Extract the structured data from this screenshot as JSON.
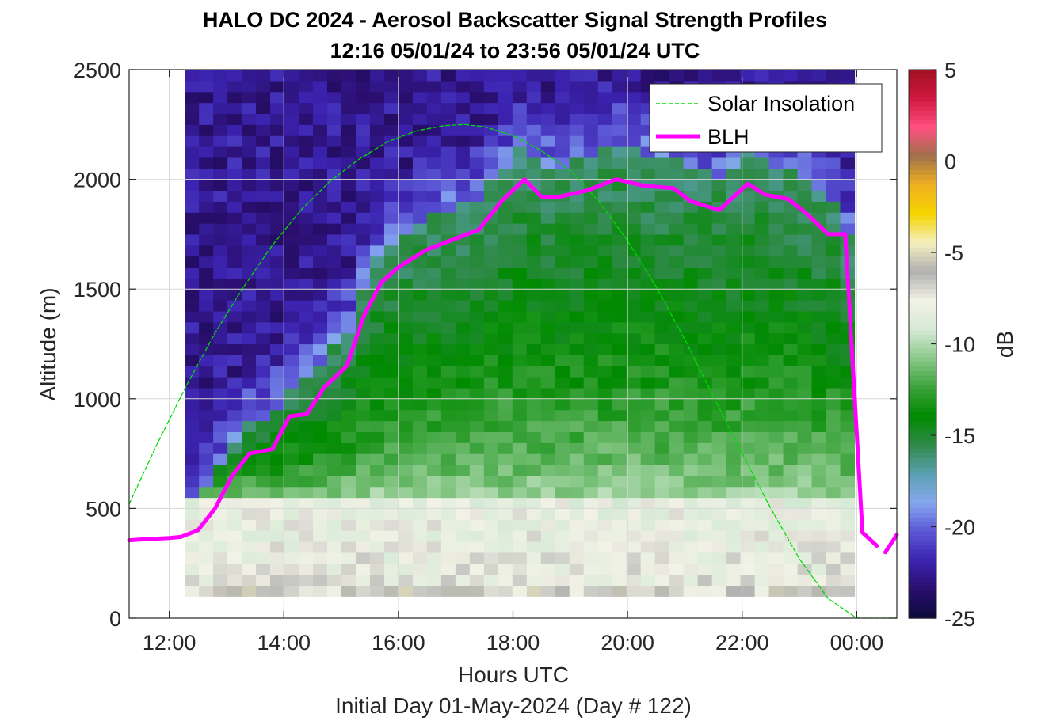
{
  "chart_data": {
    "type": "heatmap",
    "title": "HALO DC 2024 - Aerosol Backscatter Signal Strength Profiles",
    "subtitle": "12:16 05/01/24 to 23:56 05/01/24  UTC",
    "xlabel": "Hours UTC",
    "x_sublabel": "Initial Day 01-May-2024 (Day # 122)",
    "ylabel": "Altitude (m)",
    "colorbar_label": "dB",
    "xlim": [
      11.3,
      24.7
    ],
    "ylim": [
      0,
      2500
    ],
    "x_ticks": [
      12,
      14,
      16,
      18,
      20,
      22,
      24
    ],
    "x_tick_labels": [
      "12:00",
      "14:00",
      "16:00",
      "18:00",
      "20:00",
      "22:00",
      "00:00"
    ],
    "y_ticks": [
      0,
      500,
      1000,
      1500,
      2000,
      2500
    ],
    "y_tick_labels": [
      "0",
      "500",
      "1000",
      "1500",
      "2000",
      "2500"
    ],
    "clim": [
      -25,
      5
    ],
    "colorbar_ticks": [
      5,
      0,
      -5,
      -10,
      -15,
      -20,
      -25
    ],
    "colorbar_tick_labels": [
      "5",
      "0",
      "-5",
      "-10",
      "-15",
      "-20",
      "-25"
    ],
    "grid": true,
    "legend_location": "top-right",
    "heatmap": {
      "x_start": 12.27,
      "x_end": 23.96,
      "y_start": 100,
      "y_end": 2500,
      "y_step": 50,
      "blh_offset_m": 150,
      "near_ground_dB": -6.5,
      "surface_dB": -7.5,
      "transition_dB": -10,
      "mixed_layer_top_dB": -16,
      "free_troposphere_dB": -22.5
    },
    "series": [
      {
        "name": "Solar Insolation",
        "color": "#00dd00",
        "style": "dashed",
        "x": [
          11.3,
          11.8,
          12.3,
          12.8,
          13.3,
          13.8,
          14.3,
          14.8,
          15.3,
          15.8,
          16.3,
          16.8,
          17.15,
          17.5,
          18.0,
          18.5,
          19.0,
          19.5,
          20.0,
          20.5,
          21.0,
          21.5,
          22.0,
          22.5,
          23.0,
          23.5,
          24.0,
          24.1,
          24.3,
          24.7
        ],
        "y": [
          520,
          800,
          1060,
          1300,
          1510,
          1700,
          1860,
          1990,
          2090,
          2170,
          2220,
          2245,
          2250,
          2240,
          2200,
          2130,
          2040,
          1900,
          1720,
          1510,
          1270,
          1010,
          750,
          500,
          270,
          90,
          0,
          0,
          0,
          0
        ]
      },
      {
        "name": "BLH",
        "color": "#ff00ff",
        "style": "solid",
        "x": [
          11.3,
          11.6,
          12.0,
          12.2,
          12.5,
          12.8,
          13.1,
          13.4,
          13.8,
          14.1,
          14.4,
          14.7,
          15.1,
          15.4,
          15.7,
          16.0,
          16.5,
          16.9,
          17.4,
          17.8,
          18.2,
          18.5,
          18.8,
          19.3,
          19.8,
          20.3,
          20.8,
          21.1,
          21.6,
          22.1,
          22.4,
          22.8,
          23.1,
          23.5,
          23.8,
          24.1
        ],
        "y": [
          355,
          360,
          365,
          370,
          400,
          500,
          650,
          750,
          770,
          920,
          930,
          1050,
          1150,
          1380,
          1530,
          1600,
          1680,
          1720,
          1770,
          1900,
          2000,
          1920,
          1920,
          1950,
          2000,
          1970,
          1960,
          1900,
          1860,
          1980,
          1930,
          1910,
          1850,
          1750,
          1750,
          390
        ]
      },
      {
        "name": "",
        "color": "#ff00ff",
        "style": "solid",
        "x": [
          24.1,
          24.35
        ],
        "y": [
          390,
          330
        ]
      },
      {
        "name": "",
        "color": "#ff00ff",
        "style": "solid",
        "x": [
          24.5,
          24.7
        ],
        "y": [
          300,
          380
        ]
      }
    ],
    "colors": {
      "colormap": [
        "#0b0a3a",
        "#2a0e6e",
        "#3b23b0",
        "#5b57d6",
        "#86a8f0",
        "#5aa0b0",
        "#2f8a48",
        "#008a00",
        "#3ca33c",
        "#8bc98b",
        "#d6ead6",
        "#f2f2e6",
        "#b0b0b0",
        "#f5f0c0",
        "#f5d400",
        "#f0b020",
        "#a0704a",
        "#ff5080",
        "#d01840",
        "#a01020"
      ],
      "blh": "#ff00ff",
      "solar": "#00dd00"
    }
  }
}
